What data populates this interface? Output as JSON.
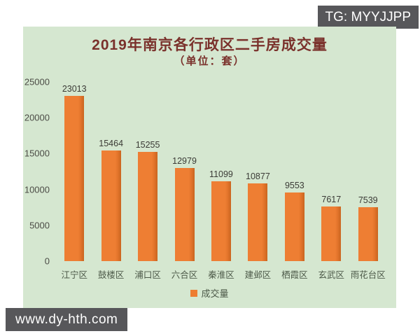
{
  "watermarks": {
    "top_right": "TG: MYYJJPP",
    "bottom_left": "www.dy-hth.com"
  },
  "chart_data": {
    "type": "bar",
    "title": "2019年南京各行政区二手房成交量",
    "subtitle": "（单位：套）",
    "categories": [
      "江宁区",
      "鼓楼区",
      "浦口区",
      "六合区",
      "秦淮区",
      "建邺区",
      "栖霞区",
      "玄武区",
      "雨花台区"
    ],
    "values": [
      23013,
      15464,
      15255,
      12979,
      11099,
      10877,
      9553,
      7617,
      7539
    ],
    "series_name": "成交量",
    "legend": [
      "成交量"
    ],
    "legend_position": "bottom",
    "yticks": [
      0,
      5000,
      10000,
      15000,
      20000,
      25000
    ],
    "ylim": [
      0,
      25000
    ],
    "grid": false,
    "colors": {
      "bar": "#ed7d31",
      "bar_shade": "#c9651f",
      "panel_background": "#d5e7d0",
      "title_text": "#7a312b",
      "axis_text": "#4c4c46",
      "category_text": "#4d5a49",
      "value_label_text": "#3b3b36",
      "badge_background": "#57575a",
      "badge_text": "#ffffff"
    }
  }
}
